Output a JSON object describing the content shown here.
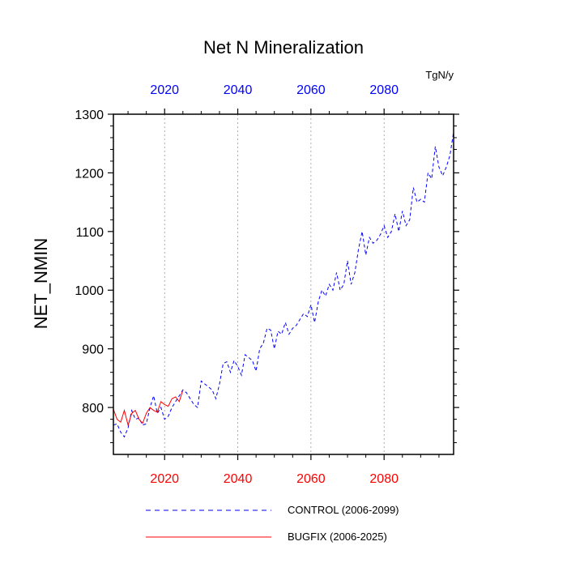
{
  "chart_data": {
    "type": "line",
    "title": "Net N Mineralization",
    "units": "TgN/y",
    "ylabel": "NET_NMIN",
    "xlabel": "",
    "xlim": [
      2006,
      2099
    ],
    "ylim": [
      720,
      1300
    ],
    "x_ticks": [
      2020,
      2040,
      2060,
      2080
    ],
    "y_ticks": [
      800,
      900,
      1000,
      1100,
      1200,
      1300
    ],
    "grid": "vertical dotted at x ticks",
    "colors": {
      "control": "#0000ff",
      "bugfix": "#ff0000",
      "top_ticks": "#0000ff",
      "bottom_ticks": "#ff0000",
      "grid": "#999999"
    },
    "series": [
      {
        "name": "CONTROL (2006-2099)",
        "style": "dashed",
        "color": "#0000ff",
        "x": [
          2006,
          2007,
          2008,
          2009,
          2010,
          2011,
          2012,
          2013,
          2014,
          2015,
          2016,
          2017,
          2018,
          2019,
          2020,
          2021,
          2022,
          2023,
          2024,
          2025,
          2026,
          2027,
          2028,
          2029,
          2030,
          2031,
          2032,
          2033,
          2034,
          2035,
          2036,
          2037,
          2038,
          2039,
          2040,
          2041,
          2042,
          2043,
          2044,
          2045,
          2046,
          2047,
          2048,
          2049,
          2050,
          2051,
          2052,
          2053,
          2054,
          2055,
          2056,
          2057,
          2058,
          2059,
          2060,
          2061,
          2062,
          2063,
          2064,
          2065,
          2066,
          2067,
          2068,
          2069,
          2070,
          2071,
          2072,
          2073,
          2074,
          2075,
          2076,
          2077,
          2078,
          2079,
          2080,
          2081,
          2082,
          2083,
          2084,
          2085,
          2086,
          2087,
          2088,
          2089,
          2090,
          2091,
          2092,
          2093,
          2094,
          2095,
          2096,
          2097,
          2098,
          2099
        ],
        "values": [
          770,
          772,
          758,
          750,
          765,
          795,
          780,
          782,
          770,
          772,
          800,
          820,
          790,
          800,
          780,
          785,
          800,
          810,
          820,
          830,
          825,
          815,
          805,
          800,
          845,
          840,
          835,
          830,
          815,
          840,
          875,
          878,
          860,
          880,
          870,
          855,
          890,
          885,
          880,
          862,
          900,
          910,
          935,
          932,
          900,
          930,
          925,
          945,
          925,
          935,
          940,
          950,
          960,
          955,
          975,
          945,
          980,
          1000,
          990,
          1010,
          1000,
          1030,
          1000,
          1010,
          1050,
          1010,
          1030,
          1070,
          1100,
          1060,
          1090,
          1080,
          1085,
          1095,
          1110,
          1090,
          1100,
          1130,
          1100,
          1135,
          1110,
          1120,
          1175,
          1150,
          1155,
          1150,
          1200,
          1190,
          1245,
          1210,
          1195,
          1210,
          1230,
          1270
        ]
      },
      {
        "name": "BUGFIX (2006-2025)",
        "style": "solid",
        "color": "#ff0000",
        "x": [
          2006,
          2007,
          2008,
          2009,
          2010,
          2011,
          2012,
          2013,
          2014,
          2015,
          2016,
          2017,
          2018,
          2019,
          2020,
          2021,
          2022,
          2023,
          2024,
          2025
        ],
        "values": [
          797,
          780,
          775,
          795,
          770,
          790,
          795,
          780,
          773,
          790,
          800,
          795,
          792,
          810,
          805,
          802,
          815,
          818,
          810,
          830
        ]
      }
    ]
  }
}
